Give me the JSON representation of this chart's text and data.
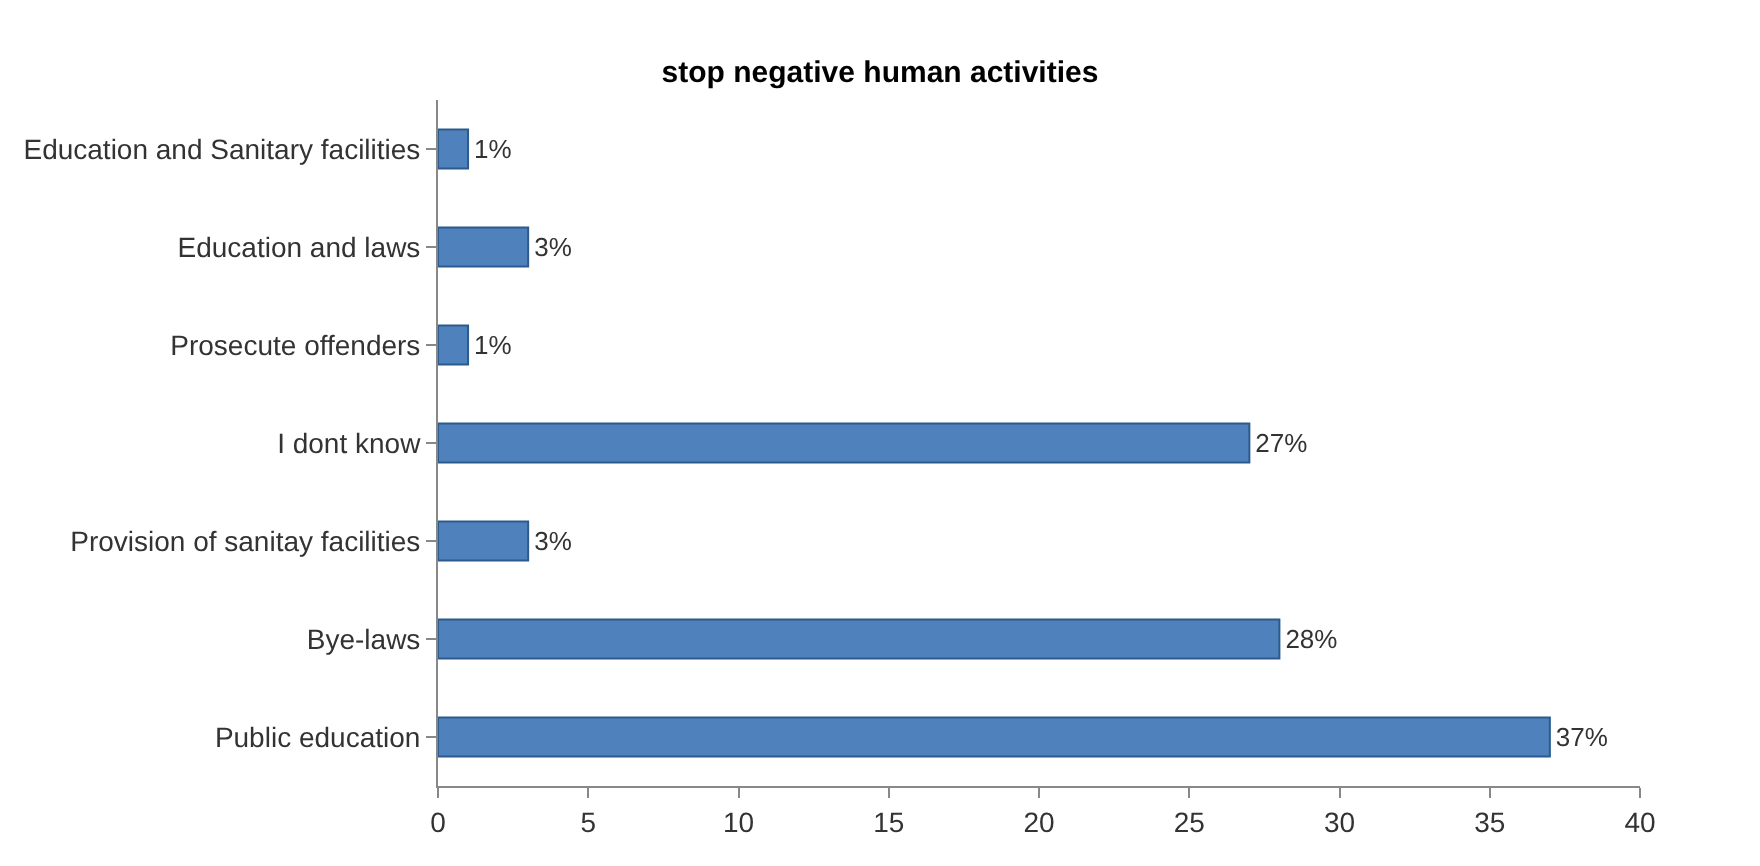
{
  "chart_data": {
    "type": "bar",
    "orientation": "horizontal",
    "title": "stop negative human activities",
    "categories": [
      "Education and Sanitary facilities",
      "Education and laws",
      "Prosecute offenders",
      "I dont know",
      "Provision of sanitay facilities",
      "Bye-laws",
      "Public education"
    ],
    "values": [
      1,
      3,
      1,
      27,
      3,
      28,
      37
    ],
    "value_labels": [
      "1%",
      "3%",
      "1%",
      "27%",
      "3%",
      "28%",
      "37%"
    ],
    "color": "#4f81bd",
    "xlim": [
      0,
      40
    ],
    "xticks": [
      0,
      5,
      10,
      15,
      20,
      25,
      30,
      35,
      40
    ],
    "legend": false
  }
}
